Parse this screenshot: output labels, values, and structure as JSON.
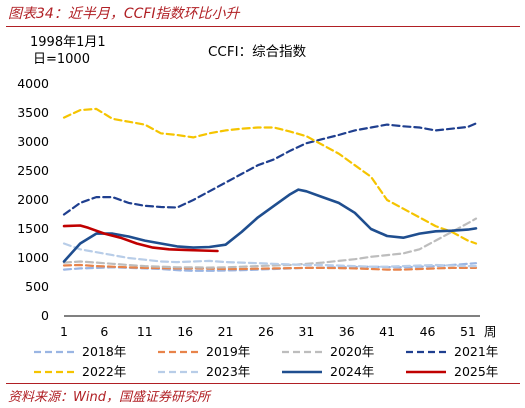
{
  "figure": {
    "title": "图表34：近半月，CCFI指数环比小升",
    "source": "资料来源：Wind，国盛证券研究所"
  },
  "chart_data": {
    "type": "line",
    "title": "CCFI：综合指数",
    "ylabel_lines": [
      "1998年1月1",
      "日=1000"
    ],
    "x_unit": "周",
    "xlim": [
      1,
      52
    ],
    "ylim": [
      0,
      4000
    ],
    "xticks": [
      1,
      6,
      11,
      16,
      21,
      26,
      31,
      36,
      41,
      46,
      51
    ],
    "yticks": [
      0,
      500,
      1000,
      1500,
      2000,
      2500,
      3000,
      3500,
      4000
    ],
    "grid": false,
    "legend_position": "bottom",
    "series": [
      {
        "name": "2018年",
        "color": "#9ab5e3",
        "style": "dashed",
        "x": [
          1,
          3,
          5,
          7,
          9,
          11,
          13,
          15,
          17,
          19,
          21,
          23,
          25,
          27,
          29,
          31,
          33,
          35,
          37,
          39,
          41,
          43,
          45,
          47,
          49,
          51,
          52
        ],
        "y": [
          800,
          820,
          830,
          840,
          830,
          820,
          810,
          790,
          780,
          780,
          785,
          790,
          800,
          810,
          820,
          830,
          835,
          840,
          845,
          850,
          845,
          840,
          850,
          860,
          880,
          900,
          910
        ]
      },
      {
        "name": "2019年",
        "color": "#e8834a",
        "style": "dashed",
        "x": [
          1,
          3,
          5,
          7,
          9,
          11,
          13,
          15,
          17,
          19,
          21,
          23,
          25,
          27,
          29,
          31,
          33,
          35,
          37,
          39,
          41,
          43,
          45,
          47,
          49,
          51,
          52
        ],
        "y": [
          870,
          880,
          860,
          850,
          840,
          830,
          825,
          820,
          820,
          815,
          810,
          810,
          815,
          820,
          825,
          830,
          830,
          825,
          820,
          810,
          800,
          800,
          810,
          820,
          830,
          830,
          830
        ]
      },
      {
        "name": "2020年",
        "color": "#bdbdbd",
        "style": "dashed",
        "x": [
          1,
          3,
          5,
          7,
          9,
          11,
          13,
          15,
          17,
          19,
          21,
          23,
          25,
          27,
          29,
          31,
          33,
          35,
          37,
          39,
          41,
          43,
          45,
          47,
          49,
          51,
          52
        ],
        "y": [
          920,
          940,
          920,
          900,
          880,
          860,
          850,
          840,
          840,
          835,
          840,
          850,
          860,
          870,
          880,
          900,
          920,
          950,
          980,
          1020,
          1050,
          1080,
          1150,
          1300,
          1450,
          1600,
          1680
        ]
      },
      {
        "name": "2021年",
        "color": "#1f3f8f",
        "style": "dashed",
        "x": [
          1,
          3,
          5,
          7,
          9,
          11,
          13,
          15,
          17,
          19,
          21,
          23,
          25,
          27,
          29,
          31,
          33,
          35,
          37,
          39,
          41,
          43,
          45,
          47,
          49,
          51,
          52
        ],
        "y": [
          1750,
          1950,
          2050,
          2050,
          1950,
          1900,
          1880,
          1870,
          2000,
          2150,
          2300,
          2450,
          2600,
          2700,
          2850,
          2980,
          3050,
          3120,
          3200,
          3250,
          3300,
          3270,
          3250,
          3200,
          3230,
          3260,
          3320
        ]
      },
      {
        "name": "2022年",
        "color": "#f5c400",
        "style": "dashed",
        "x": [
          1,
          3,
          5,
          7,
          9,
          11,
          13,
          15,
          17,
          19,
          21,
          23,
          25,
          27,
          29,
          31,
          33,
          35,
          37,
          39,
          41,
          43,
          45,
          47,
          49,
          51,
          52
        ],
        "y": [
          3420,
          3550,
          3570,
          3400,
          3350,
          3300,
          3150,
          3120,
          3080,
          3150,
          3200,
          3230,
          3250,
          3250,
          3180,
          3100,
          2950,
          2800,
          2600,
          2400,
          2000,
          1850,
          1700,
          1550,
          1450,
          1300,
          1250
        ]
      },
      {
        "name": "2023年",
        "color": "#b8cde8",
        "style": "dashed",
        "x": [
          1,
          3,
          5,
          7,
          9,
          11,
          13,
          15,
          17,
          19,
          21,
          23,
          25,
          27,
          29,
          31,
          33,
          35,
          37,
          39,
          41,
          43,
          45,
          47,
          49,
          51,
          52
        ],
        "y": [
          1250,
          1150,
          1100,
          1050,
          1000,
          970,
          940,
          930,
          940,
          950,
          930,
          920,
          910,
          900,
          890,
          880,
          880,
          870,
          860,
          850,
          850,
          860,
          870,
          880,
          870,
          860,
          860
        ]
      },
      {
        "name": "2024年",
        "color": "#1f4e8f",
        "style": "solid",
        "x": [
          1,
          3,
          5,
          7,
          9,
          11,
          13,
          15,
          17,
          19,
          21,
          23,
          25,
          27,
          29,
          30,
          31,
          33,
          35,
          37,
          39,
          41,
          43,
          45,
          47,
          49,
          51,
          52
        ],
        "y": [
          940,
          1250,
          1420,
          1420,
          1370,
          1300,
          1250,
          1200,
          1180,
          1190,
          1230,
          1450,
          1700,
          1900,
          2100,
          2180,
          2150,
          2050,
          1950,
          1780,
          1500,
          1380,
          1350,
          1420,
          1460,
          1470,
          1490,
          1510
        ]
      },
      {
        "name": "2025年",
        "color": "#c00000",
        "style": "solid",
        "x": [
          1,
          3,
          4,
          6,
          8,
          10,
          12,
          14,
          16,
          18,
          20
        ],
        "y": [
          1550,
          1560,
          1520,
          1420,
          1350,
          1250,
          1180,
          1150,
          1140,
          1130,
          1120
        ]
      }
    ]
  }
}
